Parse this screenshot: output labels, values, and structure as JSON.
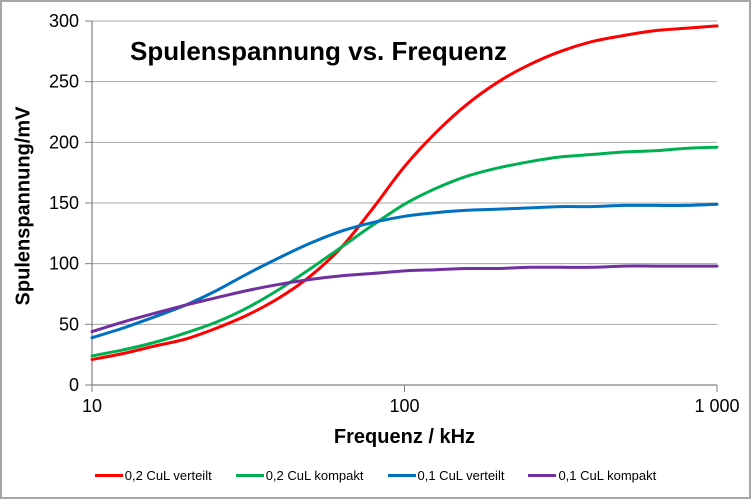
{
  "chart_data": {
    "type": "line",
    "title": "Spulenspannung vs. Frequenz",
    "xlabel": "Frequenz / kHz",
    "ylabel": "Spulenspannung/mV",
    "x_scale": "log",
    "xlim": [
      10,
      1000
    ],
    "ylim": [
      0,
      300
    ],
    "y_ticks": [
      0,
      50,
      100,
      150,
      200,
      250,
      300
    ],
    "x_ticks": [
      10,
      100,
      1000
    ],
    "x_tick_labels": [
      "10",
      "100",
      "1 000"
    ],
    "grid": "horizontal-only",
    "legend_position": "bottom",
    "x": [
      10,
      12.6,
      15.8,
      20,
      25.1,
      31.6,
      39.8,
      50.1,
      63.1,
      79.4,
      100,
      126,
      158,
      200,
      251,
      316,
      398,
      501,
      631,
      794,
      1000
    ],
    "series": [
      {
        "name": "0,2 CuL verteilt",
        "color": "#FF0000",
        "values": [
          21,
          26,
          32,
          38,
          47,
          58,
          72,
          90,
          114,
          146,
          180,
          208,
          231,
          250,
          264,
          275,
          283,
          288,
          292,
          294,
          296
        ]
      },
      {
        "name": "0,2 CuL kompakt",
        "color": "#00B050",
        "values": [
          24,
          29,
          35,
          43,
          52,
          64,
          79,
          96,
          114,
          132,
          149,
          162,
          172,
          179,
          184,
          188,
          190,
          192,
          193,
          195,
          196
        ]
      },
      {
        "name": "0,1 CuL verteilt",
        "color": "#0070C0",
        "values": [
          39,
          47,
          56,
          66,
          78,
          92,
          105,
          117,
          127,
          134,
          139,
          142,
          144,
          145,
          146,
          147,
          147,
          148,
          148,
          148,
          149
        ]
      },
      {
        "name": "0,1 CuL kompakt",
        "color": "#7030A0",
        "values": [
          44,
          52,
          59,
          66,
          72,
          78,
          83,
          87,
          90,
          92,
          94,
          95,
          96,
          96,
          97,
          97,
          97,
          98,
          98,
          98,
          98
        ]
      }
    ],
    "colors": {
      "grid": "#A6A6A6",
      "axis": "#808080",
      "text": "#000000",
      "frame_border": "#A6A6A6",
      "background": "#FFFFFF"
    }
  }
}
